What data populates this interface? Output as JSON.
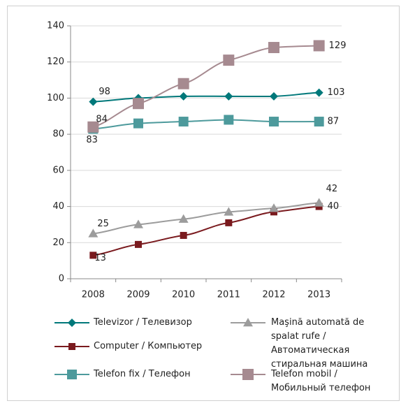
{
  "chart_data": {
    "type": "line",
    "categories": [
      "2008",
      "2009",
      "2010",
      "2011",
      "2012",
      "2013"
    ],
    "ylim": [
      0,
      140
    ],
    "yticks": [
      0,
      20,
      40,
      60,
      80,
      100,
      120,
      140
    ],
    "grid": true,
    "series": [
      {
        "name": "Televizor / Телевизор",
        "color": "#00787a",
        "marker": "diamond",
        "values": [
          98,
          100,
          101,
          101,
          101,
          103
        ],
        "value_labels": [
          "98",
          null,
          null,
          null,
          null,
          "103"
        ]
      },
      {
        "name": "Computer / Компьютер",
        "color": "#7a1a1e",
        "marker": "square",
        "values": [
          13,
          19,
          24,
          31,
          37,
          40
        ],
        "value_labels": [
          "13",
          null,
          null,
          null,
          null,
          "40"
        ]
      },
      {
        "name": "Telefon fix / Телефон",
        "color": "#4d9a9c",
        "marker": "square",
        "values": [
          83,
          86,
          87,
          88,
          87,
          87
        ],
        "value_labels": [
          "83",
          null,
          null,
          null,
          null,
          "87"
        ]
      },
      {
        "name": "Maşină automată de spalat rufe / Автоматическая стиральная машина",
        "color": "#9c9c9c",
        "marker": "triangle",
        "values": [
          25,
          30,
          33,
          37,
          39,
          42
        ],
        "value_labels": [
          "25",
          null,
          null,
          null,
          null,
          "42"
        ]
      },
      {
        "name": "Telefon mobil / Мобильный телефон",
        "color": "#a68a90",
        "marker": "square",
        "values": [
          84,
          97,
          108,
          121,
          128,
          129
        ],
        "value_labels": [
          "84",
          null,
          null,
          null,
          null,
          "129"
        ]
      }
    ]
  }
}
